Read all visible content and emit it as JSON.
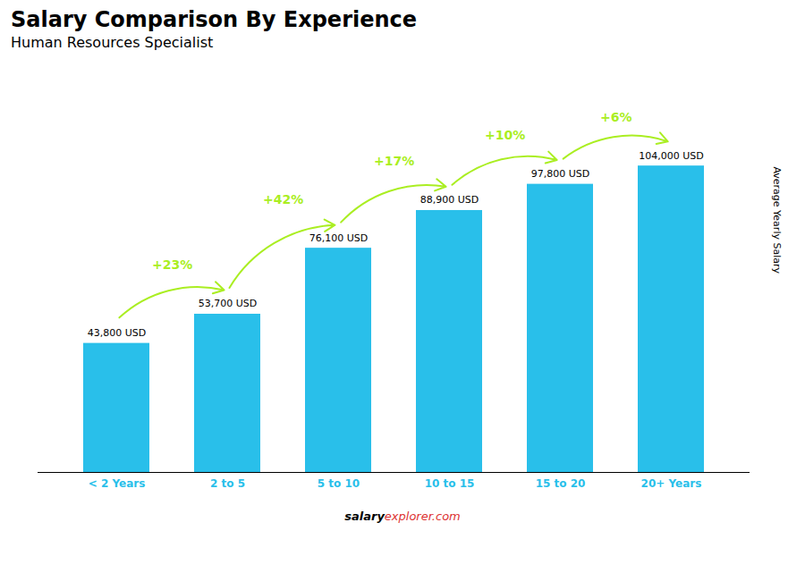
{
  "chart_data": {
    "type": "bar",
    "title": "Salary Comparison By Experience",
    "subtitle": "Human Resources Specialist",
    "ylabel": "Average Yearly Salary",
    "categories": [
      "< 2 Years",
      "2 to 5",
      "5 to 10",
      "10 to 15",
      "15 to 20",
      "20+ Years"
    ],
    "values": [
      43800,
      53700,
      76100,
      88900,
      97800,
      104000
    ],
    "value_labels": [
      "43,800 USD",
      "53,700 USD",
      "76,100 USD",
      "88,900 USD",
      "97,800 USD",
      "104,000 USD"
    ],
    "data_labels": true,
    "color": "#29BFEA",
    "ylim": [
      0,
      135000
    ],
    "tick_labels": "x",
    "grid": false,
    "annotations": [
      {
        "text": "+23%",
        "from": "< 2 Years",
        "to": "2 to 5",
        "color": "#AAEE22"
      },
      {
        "text": "+42%",
        "from": "2 to 5",
        "to": "5 to 10",
        "color": "#AAEE22"
      },
      {
        "text": "+17%",
        "from": "5 to 10",
        "to": "10 to 15",
        "color": "#AAEE22"
      },
      {
        "text": "+10%",
        "from": "10 to 15",
        "to": "15 to 20",
        "color": "#AAEE22"
      },
      {
        "text": "+6%",
        "from": "15 to 20",
        "to": "20+ Years",
        "color": "#AAEE22"
      }
    ],
    "footer": [
      {
        "text": "salary"
      },
      {
        "text": "explorer.com",
        "color": "#DD3333"
      }
    ]
  }
}
